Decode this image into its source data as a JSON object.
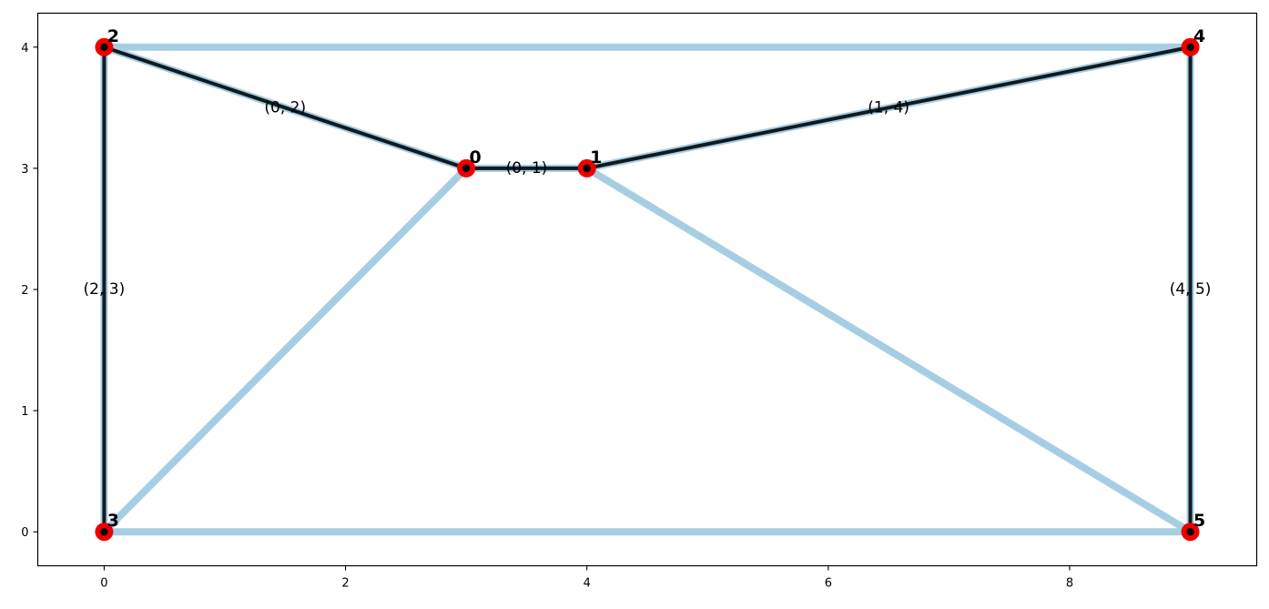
{
  "chart_data": {
    "type": "graph",
    "xlim": [
      -0.55,
      9.55
    ],
    "ylim": [
      -0.28,
      4.28
    ],
    "x_ticks": [
      {
        "value": 0,
        "label": "0"
      },
      {
        "value": 2,
        "label": "2"
      },
      {
        "value": 4,
        "label": "4"
      },
      {
        "value": 6,
        "label": "6"
      },
      {
        "value": 8,
        "label": "8"
      }
    ],
    "y_ticks": [
      {
        "value": 0,
        "label": "0"
      },
      {
        "value": 1,
        "label": "1"
      },
      {
        "value": 2,
        "label": "2"
      },
      {
        "value": 3,
        "label": "3"
      },
      {
        "value": 4,
        "label": "4"
      }
    ],
    "grid": false,
    "colors": {
      "all_edges": "#a6cee3",
      "highlighted_edges": "#111a20",
      "node_outer": "#ee0000",
      "node_inner": "#000000"
    },
    "nodes": [
      {
        "id": "0",
        "x": 3,
        "y": 3
      },
      {
        "id": "1",
        "x": 4,
        "y": 3
      },
      {
        "id": "2",
        "x": 0,
        "y": 4
      },
      {
        "id": "3",
        "x": 0,
        "y": 0
      },
      {
        "id": "4",
        "x": 9,
        "y": 4
      },
      {
        "id": "5",
        "x": 9,
        "y": 0
      }
    ],
    "edges": [
      [
        "0",
        "1"
      ],
      [
        "0",
        "2"
      ],
      [
        "0",
        "3"
      ],
      [
        "1",
        "4"
      ],
      [
        "1",
        "5"
      ],
      [
        "2",
        "3"
      ],
      [
        "2",
        "4"
      ],
      [
        "3",
        "5"
      ],
      [
        "4",
        "5"
      ]
    ],
    "highlighted_edges": [
      {
        "source": "0",
        "target": "1",
        "label": "(0, 1)"
      },
      {
        "source": "0",
        "target": "2",
        "label": "(0, 2)"
      },
      {
        "source": "1",
        "target": "4",
        "label": "(1, 4)"
      },
      {
        "source": "2",
        "target": "3",
        "label": "(2, 3)"
      },
      {
        "source": "4",
        "target": "5",
        "label": "(4, 5)"
      }
    ]
  }
}
